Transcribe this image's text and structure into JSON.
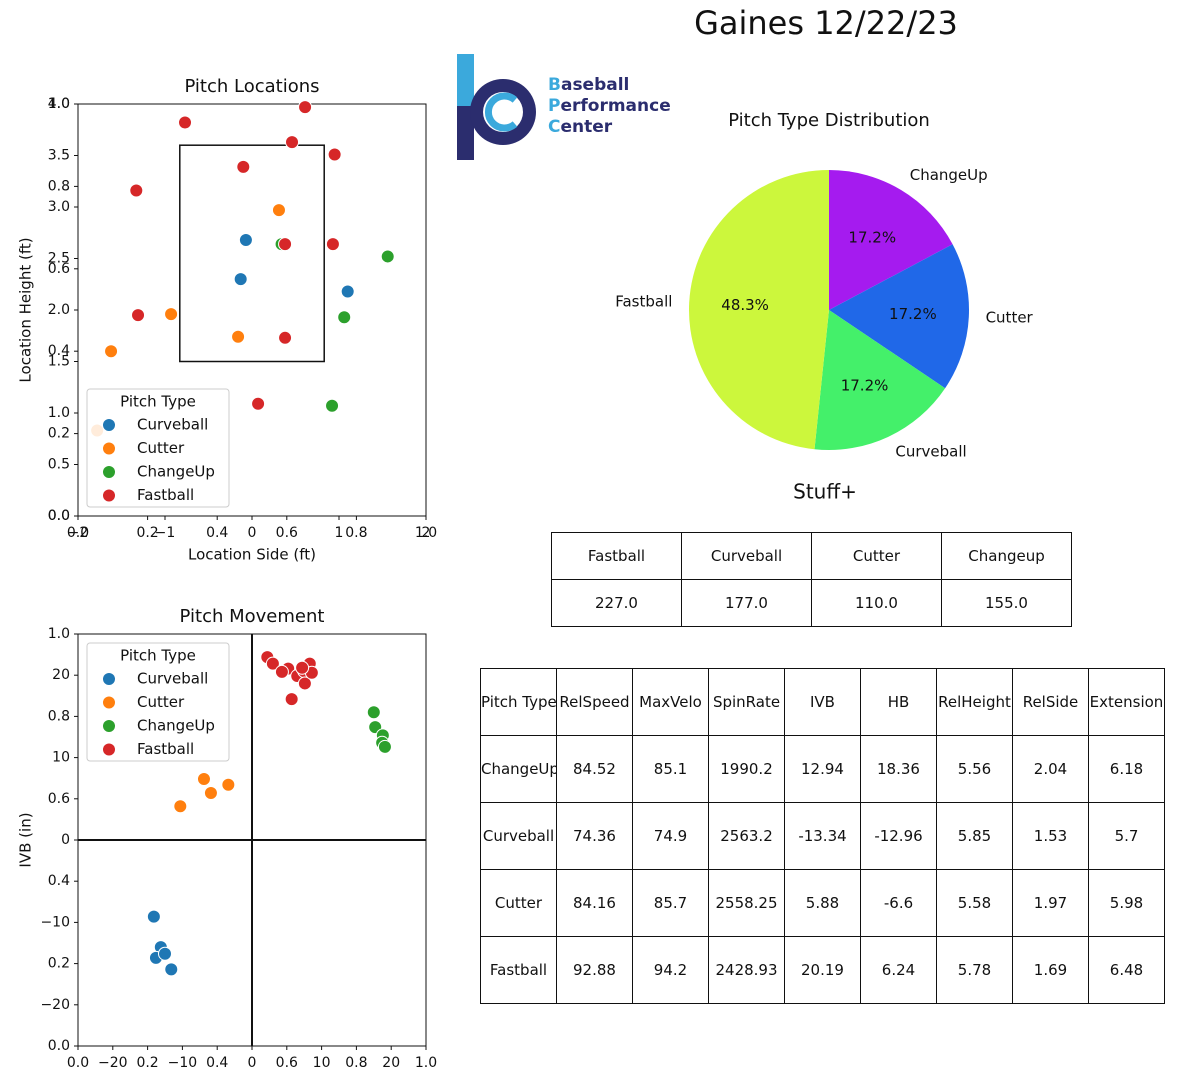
{
  "header": {
    "title": "Gaines 12/22/23"
  },
  "logo": {
    "lines": [
      "Baseball",
      "Performance",
      "Center"
    ]
  },
  "chart_data": [
    {
      "type": "scatter",
      "title": "Pitch Locations",
      "x_label": "Location Side (ft)",
      "y_label": "Location Height (ft)",
      "xlim": [
        -2,
        2
      ],
      "xticks": [
        {
          "value": -2,
          "label": "−2"
        },
        {
          "value": -1,
          "label": "−1"
        },
        0,
        1,
        2
      ],
      "ylim": [
        0,
        4
      ],
      "yticks": [
        {
          "value": 0,
          "label": "0.0"
        },
        0.5,
        {
          "value": 1,
          "label": "1.0"
        },
        1.5,
        {
          "value": 2,
          "label": "2.0"
        },
        2.5,
        {
          "value": 3,
          "label": "3.0"
        },
        3.5,
        {
          "value": 4,
          "label": "4.0"
        }
      ],
      "x2lim": [
        0,
        1
      ],
      "x2ticks": [
        {
          "value": 0,
          "label": "0.0"
        },
        0.2,
        0.4,
        0.6,
        0.8,
        {
          "value": 1,
          "label": "1.0"
        }
      ],
      "y2lim": [
        0,
        1
      ],
      "y2ticks": [
        {
          "value": 0,
          "label": "0.0"
        },
        0.2,
        0.4,
        0.6,
        0.8,
        {
          "value": 1,
          "label": "1.0"
        }
      ],
      "strike_zone": {
        "x": [
          -0.83,
          0.83
        ],
        "y": [
          1.5,
          3.6
        ]
      },
      "legend_title": "Pitch Type",
      "legend": "lower left",
      "series": [
        {
          "name": "Curveball",
          "color": "#1f77b4",
          "x": [
            -0.07,
            -0.13,
            1.1
          ],
          "values": [
            2.68,
            2.3,
            2.18
          ]
        },
        {
          "name": "Cutter",
          "color": "#ff7f0e",
          "x": [
            0.31,
            -0.93,
            -0.16,
            -1.62,
            -1.78
          ],
          "values": [
            2.97,
            1.96,
            1.74,
            1.6,
            0.83
          ]
        },
        {
          "name": "ChangeUp",
          "color": "#2ca02c",
          "x": [
            0.34,
            1.56,
            1.06,
            0.92
          ],
          "values": [
            2.64,
            2.52,
            1.93,
            1.07
          ]
        },
        {
          "name": "Fastball",
          "color": "#d62728",
          "x": [
            -0.77,
            0.61,
            0.46,
            -0.1,
            0.95,
            -1.33,
            0.93,
            -1.31,
            0.38,
            0.07,
            0.38
          ],
          "values": [
            3.82,
            3.97,
            3.63,
            3.39,
            3.51,
            3.16,
            2.64,
            1.95,
            1.73,
            1.09,
            2.64
          ]
        }
      ]
    },
    {
      "type": "scatter",
      "title": "Pitch Movement",
      "y_label": "IVB (in)",
      "xlim": [
        -25,
        25
      ],
      "xticks": [
        {
          "value": -20,
          "label": "−20"
        },
        {
          "value": -10,
          "label": "−10"
        },
        0,
        10,
        20
      ],
      "ylim": [
        -25,
        25
      ],
      "yticks": [
        {
          "value": -20,
          "label": "−20"
        },
        {
          "value": -10,
          "label": "−10"
        },
        0,
        10,
        20
      ],
      "x2lim": [
        0,
        1
      ],
      "x2ticks": [
        {
          "value": 0,
          "label": "0.0"
        },
        0.2,
        0.4,
        0.6,
        0.8,
        {
          "value": 1,
          "label": "1.0"
        }
      ],
      "y2lim": [
        0,
        1
      ],
      "y2ticks": [
        {
          "value": 0,
          "label": "0.0"
        },
        0.2,
        0.4,
        0.6,
        0.8,
        {
          "value": 1,
          "label": "1.0"
        }
      ],
      "zero_lines": true,
      "legend_title": "Pitch Type",
      "legend": "upper left",
      "series": [
        {
          "name": "Curveball",
          "color": "#1f77b4",
          "x": [
            -14.1,
            -13.1,
            -13.8,
            -12.5,
            -11.6
          ],
          "values": [
            -9.3,
            -13.0,
            -14.3,
            -13.8,
            -15.7
          ]
        },
        {
          "name": "Cutter",
          "color": "#ff7f0e",
          "x": [
            -10.3,
            -6.9,
            -5.9,
            -3.4
          ],
          "values": [
            4.1,
            7.4,
            5.7,
            6.7
          ]
        },
        {
          "name": "ChangeUp",
          "color": "#2ca02c",
          "x": [
            17.5,
            17.7,
            18.8,
            18.7,
            19.1
          ],
          "values": [
            15.5,
            13.7,
            12.7,
            11.8,
            11.3
          ]
        },
        {
          "name": "Fastball",
          "color": "#d62728",
          "x": [
            2.2,
            3.0,
            5.2,
            4.3,
            6.5,
            7.5,
            7.6,
            8.3,
            8.6,
            5.7,
            7.2
          ],
          "values": [
            22.2,
            21.4,
            20.8,
            20.4,
            19.9,
            20.5,
            19.0,
            21.4,
            20.3,
            17.1,
            20.9
          ]
        }
      ]
    },
    {
      "type": "pie",
      "title": "Pitch Type Distribution",
      "categories": [
        "ChangeUp",
        "Cutter",
        "Curveball",
        "Fastball"
      ],
      "values": [
        17.2,
        17.2,
        17.2,
        48.3
      ],
      "value_labels": [
        "17.2%",
        "17.2%",
        "17.2%",
        "48.3%"
      ],
      "colors": [
        "#a51bef",
        "#2068e8",
        "#44f06a",
        "#ccf73c"
      ]
    }
  ],
  "stuff_table": {
    "title": "Stuff+",
    "header": [
      "Fastball",
      "Curveball",
      "Cutter",
      "Changeup"
    ],
    "rows": [
      [
        "227.0",
        "177.0",
        "110.0",
        "155.0"
      ]
    ]
  },
  "metrics_table": {
    "header": [
      "Pitch Type",
      "RelSpeed",
      "MaxVelo",
      "SpinRate",
      "IVB",
      "HB",
      "RelHeight",
      "RelSide",
      "Extension"
    ],
    "rows": [
      [
        "ChangeUp",
        "84.52",
        "85.1",
        "1990.2",
        "12.94",
        "18.36",
        "5.56",
        "2.04",
        "6.18"
      ],
      [
        "Curveball",
        "74.36",
        "74.9",
        "2563.2",
        "-13.34",
        "-12.96",
        "5.85",
        "1.53",
        "5.7"
      ],
      [
        "Cutter",
        "84.16",
        "85.7",
        "2558.25",
        "5.88",
        "-6.6",
        "5.58",
        "1.97",
        "5.98"
      ],
      [
        "Fastball",
        "92.88",
        "94.2",
        "2428.93",
        "20.19",
        "6.24",
        "5.78",
        "1.69",
        "6.48"
      ]
    ]
  }
}
